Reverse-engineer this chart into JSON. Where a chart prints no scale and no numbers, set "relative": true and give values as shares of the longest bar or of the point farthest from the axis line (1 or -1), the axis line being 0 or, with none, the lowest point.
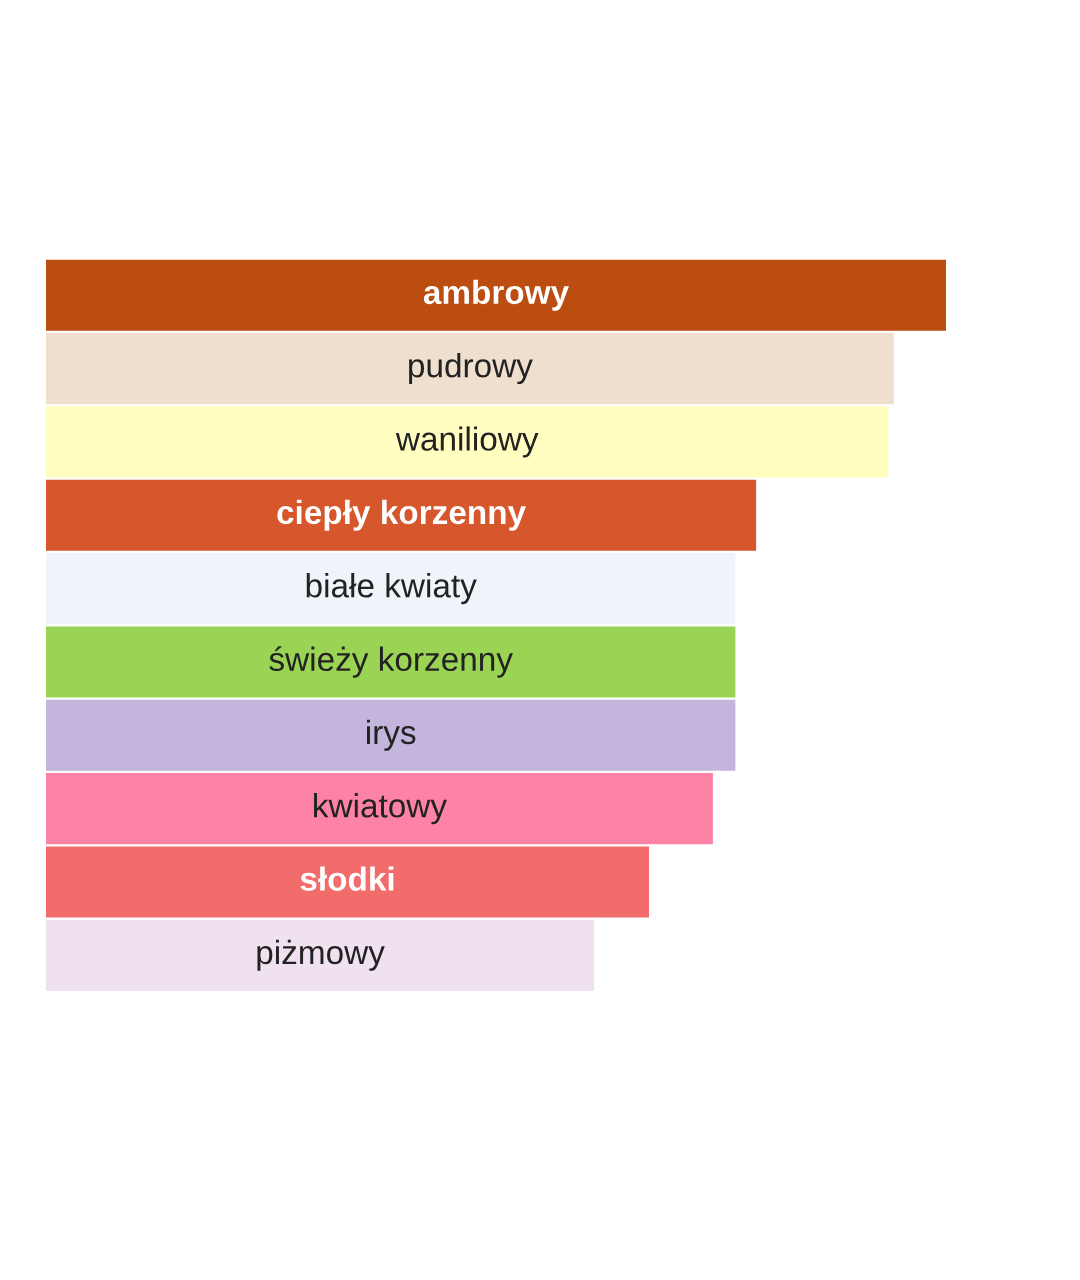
{
  "chart_data": {
    "type": "bar",
    "orientation": "horizontal",
    "relative": true,
    "data_labels": false,
    "categories": [
      "ambrowy",
      "pudrowy",
      "waniliowy",
      "ciepły korzenny",
      "białe kwiaty",
      "świeży korzenny",
      "irys",
      "kwiatowy",
      "słodki",
      "piżmowy"
    ],
    "values": [
      1,
      0.942,
      0.936,
      0.789,
      0.766,
      0.766,
      0.766,
      0.741,
      0.67,
      0.609
    ],
    "colors": [
      "#bc4d10",
      "#eedfcf",
      "#fffec0",
      "#d5572b",
      "#eff4fb",
      "#9bd455",
      "#c3b5dc",
      "#fd83a6",
      "#f26c6c",
      "#efe1ef"
    ]
  }
}
